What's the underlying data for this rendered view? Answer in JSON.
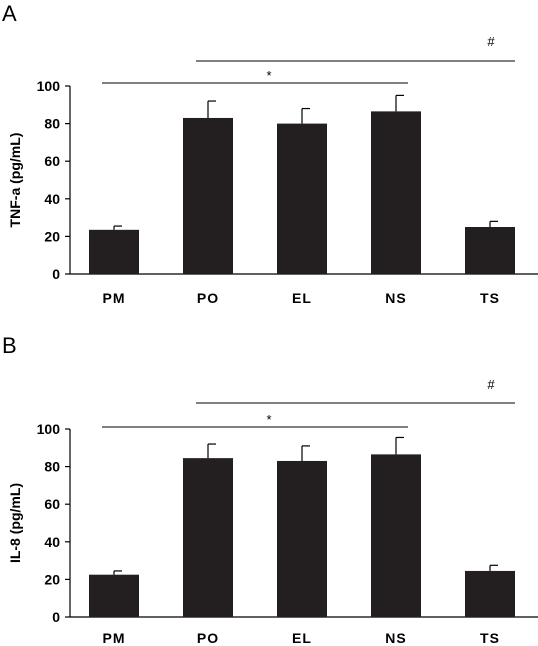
{
  "chart_data": [
    {
      "panel": "A",
      "type": "bar",
      "categories": [
        "PM",
        "PO",
        "EL",
        "NS",
        "TS"
      ],
      "values": [
        23.5,
        83,
        80,
        86.5,
        25
      ],
      "errors": [
        2,
        9,
        8,
        8.5,
        3
      ],
      "ylabel": "TNF-a (pg/mL)",
      "ylim": [
        0,
        100
      ],
      "yticks": [
        "0",
        "20",
        "40",
        "60",
        "80",
        "100"
      ],
      "grid": false,
      "bar_color": "#231f20",
      "annotations": [
        {
          "symbol": "*",
          "from": "PM",
          "to": "NS"
        },
        {
          "symbol": "#",
          "from": "PO",
          "to": "TS"
        }
      ]
    },
    {
      "panel": "B",
      "type": "bar",
      "categories": [
        "PM",
        "PO",
        "EL",
        "NS",
        "TS"
      ],
      "values": [
        22.5,
        84.5,
        83,
        86.5,
        24.5
      ],
      "errors": [
        2,
        7.5,
        8,
        9,
        3
      ],
      "ylabel": "IL-8 (pg/mL)",
      "ylim": [
        0,
        100
      ],
      "yticks": [
        "0",
        "20",
        "40",
        "60",
        "80",
        "100"
      ],
      "grid": false,
      "bar_color": "#231f20",
      "annotations": [
        {
          "symbol": "*",
          "from": "PM",
          "to": "NS"
        },
        {
          "symbol": "#",
          "from": "PO",
          "to": "TS"
        }
      ]
    }
  ]
}
